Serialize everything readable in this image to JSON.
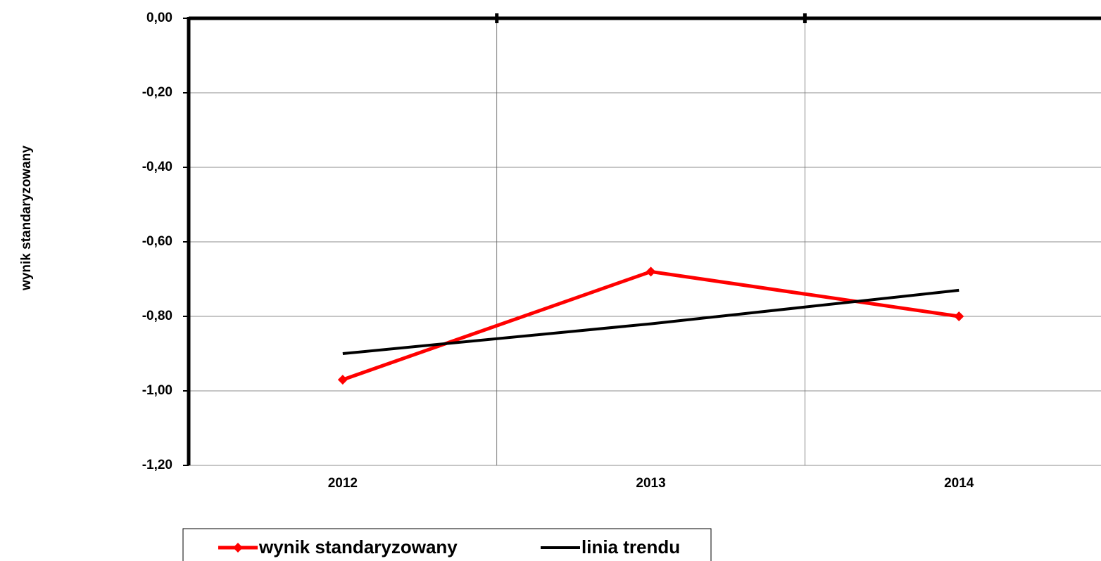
{
  "chart_data": {
    "type": "line",
    "y_label": "wynik standaryzowany",
    "categories": [
      "2012",
      "2013",
      "2014"
    ],
    "series": [
      {
        "name": "wynik standaryzowany",
        "color": "#ff0000",
        "values": [
          -0.97,
          -0.68,
          -0.8
        ],
        "marker": "diamond"
      },
      {
        "name": "linia trendu",
        "color": "#000000",
        "values": [
          -0.9,
          -0.82,
          -0.73
        ]
      }
    ],
    "ylim": [
      -1.2,
      0
    ],
    "yticks": [
      {
        "value": 0,
        "label": "0,00"
      },
      {
        "value": -0.2,
        "label": "-0,20"
      },
      {
        "value": -0.4,
        "label": "-0,40"
      },
      {
        "value": -0.6,
        "label": "-0,60"
      },
      {
        "value": -0.8,
        "label": "-0,80"
      },
      {
        "value": -1.0,
        "label": "-1,00"
      },
      {
        "value": -1.2,
        "label": "-1,20"
      }
    ],
    "grid": true
  }
}
